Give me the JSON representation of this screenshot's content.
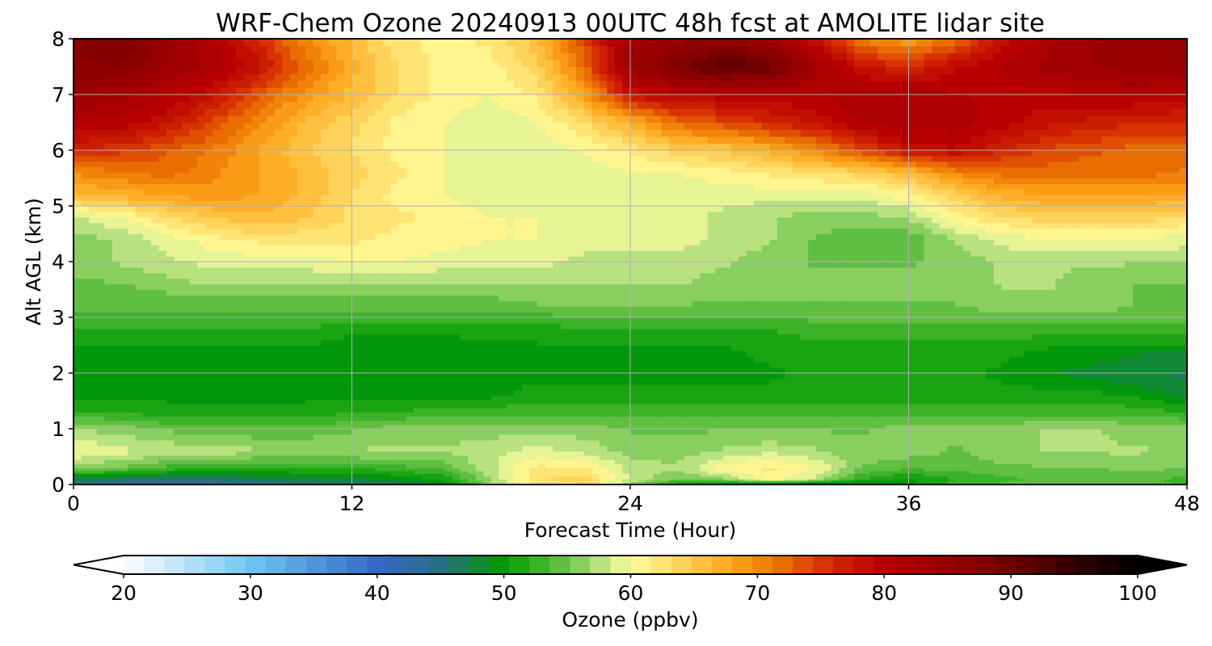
{
  "chart_data": {
    "type": "heatmap",
    "title": "WRF-Chem Ozone  20240913 00UTC 48h fcst at AMOLITE lidar site",
    "xlabel": "Forecast Time (Hour)",
    "ylabel": "Alt AGL (km)",
    "xlim": [
      0,
      48
    ],
    "ylim": [
      0,
      8
    ],
    "x_ticks": [
      0,
      12,
      24,
      36,
      48
    ],
    "x_tick_labels": [
      "0",
      "12",
      "24",
      "36",
      "48"
    ],
    "y_ticks": [
      0,
      1,
      2,
      3,
      4,
      5,
      6,
      7,
      8
    ],
    "y_tick_labels": [
      "0",
      "1",
      "2",
      "3",
      "4",
      "5",
      "6",
      "7",
      "8"
    ],
    "grid": true,
    "x_hours": [
      0,
      2,
      4,
      6,
      8,
      10,
      12,
      14,
      16,
      18,
      20,
      22,
      24,
      26,
      28,
      30,
      32,
      34,
      36,
      38,
      40,
      42,
      44,
      46,
      48
    ],
    "altitudes_km": [
      0.0,
      0.1,
      0.3,
      0.6,
      1.0,
      1.3,
      1.6,
      2.0,
      2.4,
      2.8,
      3.2,
      3.6,
      4.0,
      4.4,
      4.8,
      5.2,
      5.6,
      6.0,
      6.5,
      7.0,
      7.5,
      8.0
    ],
    "ozone_ppbv": [
      [
        44,
        43,
        42,
        42,
        43,
        44,
        45,
        46,
        48,
        56,
        62,
        63,
        56,
        50,
        48,
        46,
        45,
        46,
        50,
        53,
        54,
        55,
        55,
        55,
        53
      ],
      [
        47,
        46,
        46,
        46,
        47,
        48,
        48,
        49,
        51,
        57,
        63,
        64,
        58,
        55,
        56,
        61,
        58,
        52,
        50,
        52,
        53,
        54,
        54,
        54,
        53
      ],
      [
        56,
        55,
        53,
        52,
        52,
        52,
        52,
        53,
        54,
        58,
        62,
        62,
        58,
        57,
        61,
        62,
        60,
        55,
        54,
        54,
        55,
        55,
        55,
        56,
        55
      ],
      [
        60,
        59,
        58,
        58,
        57,
        57,
        57,
        57,
        57,
        58,
        59,
        58,
        56,
        56,
        57,
        58,
        57,
        56,
        56,
        55,
        56,
        57,
        57,
        57,
        56
      ],
      [
        57,
        56,
        55,
        54,
        54,
        54,
        55,
        56,
        56,
        56,
        56,
        56,
        55,
        55,
        55,
        55,
        55,
        55,
        56,
        56,
        56,
        57,
        57,
        56,
        56
      ],
      [
        52,
        52,
        51,
        51,
        51,
        51,
        52,
        52,
        53,
        53,
        53,
        53,
        53,
        53,
        53,
        53,
        53,
        53,
        53,
        53,
        53,
        53,
        53,
        53,
        52
      ],
      [
        50,
        50,
        50,
        50,
        50,
        50,
        50,
        50,
        50,
        50,
        51,
        51,
        51,
        51,
        51,
        51,
        51,
        51,
        51,
        51,
        51,
        51,
        51,
        50,
        48
      ],
      [
        49,
        49,
        49,
        49,
        49,
        49,
        49,
        49,
        49,
        50,
        50,
        50,
        50,
        50,
        50,
        50,
        51,
        51,
        51,
        51,
        50,
        49,
        48,
        47,
        47
      ],
      [
        50,
        50,
        50,
        50,
        50,
        50,
        49,
        49,
        49,
        50,
        50,
        50,
        50,
        50,
        50,
        51,
        51,
        51,
        51,
        51,
        51,
        50,
        50,
        49,
        49
      ],
      [
        52,
        52,
        52,
        52,
        52,
        52,
        51,
        51,
        51,
        51,
        51,
        52,
        52,
        52,
        52,
        52,
        53,
        53,
        53,
        53,
        53,
        53,
        53,
        53,
        53
      ],
      [
        54,
        54,
        54,
        54,
        54,
        54,
        54,
        54,
        54,
        54,
        55,
        55,
        55,
        55,
        55,
        55,
        55,
        55,
        55,
        55,
        56,
        56,
        56,
        55,
        55
      ],
      [
        55,
        55,
        56,
        57,
        57,
        57,
        57,
        57,
        57,
        57,
        57,
        57,
        57,
        57,
        56,
        56,
        56,
        56,
        56,
        56,
        57,
        57,
        56,
        55,
        55
      ],
      [
        56,
        57,
        58,
        59,
        59,
        59,
        60,
        60,
        59,
        59,
        59,
        58,
        58,
        58,
        57,
        56,
        55,
        55,
        55,
        56,
        57,
        57,
        57,
        57,
        57
      ],
      [
        56,
        57,
        59,
        61,
        62,
        62,
        62,
        61,
        61,
        60,
        60,
        59,
        59,
        59,
        58,
        57,
        55,
        54,
        54,
        57,
        59,
        60,
        60,
        60,
        59
      ],
      [
        58,
        60,
        63,
        65,
        66,
        65,
        63,
        62,
        61,
        60,
        60,
        59,
        59,
        59,
        58,
        57,
        56,
        56,
        57,
        61,
        63,
        64,
        64,
        64,
        63
      ],
      [
        66,
        67,
        68,
        69,
        68,
        66,
        63,
        61,
        60,
        59,
        59,
        59,
        59,
        59,
        59,
        59,
        59,
        59,
        61,
        64,
        67,
        68,
        68,
        68,
        68
      ],
      [
        70,
        71,
        72,
        70,
        68,
        66,
        64,
        62,
        60,
        59,
        59,
        59,
        60,
        60,
        61,
        62,
        63,
        64,
        66,
        70,
        72,
        72,
        72,
        72,
        71
      ],
      [
        76,
        75,
        73,
        71,
        68,
        65,
        63,
        61,
        60,
        59,
        59,
        60,
        62,
        64,
        65,
        67,
        70,
        74,
        78,
        79,
        76,
        74,
        73,
        72,
        72
      ],
      [
        81,
        80,
        78,
        74,
        70,
        66,
        64,
        61,
        60,
        59,
        60,
        63,
        67,
        72,
        74,
        76,
        78,
        81,
        82,
        82,
        80,
        78,
        77,
        76,
        76
      ],
      [
        84,
        83,
        81,
        78,
        73,
        69,
        66,
        63,
        61,
        60,
        62,
        68,
        78,
        80,
        80,
        80,
        81,
        82,
        82,
        81,
        80,
        80,
        81,
        81,
        80
      ],
      [
        87,
        87,
        84,
        82,
        78,
        72,
        67,
        63,
        61,
        61,
        64,
        72,
        84,
        88,
        92,
        90,
        83,
        78,
        76,
        79,
        81,
        83,
        84,
        85,
        85
      ],
      [
        87,
        89,
        85,
        81,
        76,
        70,
        66,
        62,
        61,
        62,
        66,
        74,
        83,
        85,
        86,
        84,
        78,
        71,
        68,
        72,
        78,
        82,
        84,
        84,
        84
      ]
    ],
    "colorbar": {
      "label": "Ozone  (ppbv)",
      "min": 20,
      "max": 100,
      "ticks": [
        20,
        30,
        40,
        50,
        60,
        70,
        80,
        90,
        100
      ],
      "tick_labels": [
        "20",
        "30",
        "40",
        "50",
        "60",
        "70",
        "80",
        "90",
        "100"
      ],
      "extend": "both",
      "min_extend_color": "#ffffff",
      "max_extend_color": "#000000"
    },
    "colormap_stops": [
      [
        20,
        "#ffffff"
      ],
      [
        30,
        "#6ec6f0"
      ],
      [
        40,
        "#3568c4"
      ],
      [
        45,
        "#2a6f84"
      ],
      [
        50,
        "#009a00"
      ],
      [
        55,
        "#6cc44a"
      ],
      [
        58,
        "#c4e688"
      ],
      [
        60,
        "#fffe9c"
      ],
      [
        64,
        "#ffd25a"
      ],
      [
        68,
        "#ffa51a"
      ],
      [
        72,
        "#e96d00"
      ],
      [
        76,
        "#d22400"
      ],
      [
        80,
        "#b80000"
      ],
      [
        88,
        "#820000"
      ],
      [
        95,
        "#330000"
      ],
      [
        100,
        "#000000"
      ]
    ]
  }
}
